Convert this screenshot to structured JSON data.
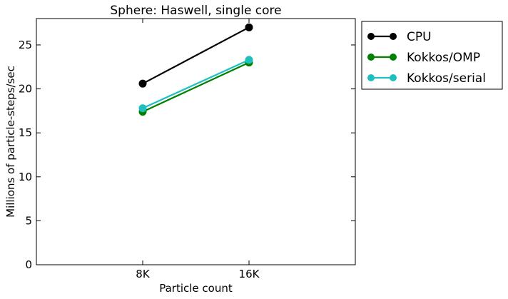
{
  "chart_data": {
    "type": "line",
    "title": "Sphere: Haswell, single core",
    "xlabel": "Particle count",
    "ylabel": "Millions of particle-steps/sec",
    "categories": [
      "8K",
      "16K"
    ],
    "x_positions": [
      1,
      2
    ],
    "xlim": [
      0,
      3
    ],
    "ylim": [
      0,
      28
    ],
    "yticks": [
      0,
      5,
      10,
      15,
      20,
      25
    ],
    "grid": false,
    "legend_position": "outside-right-top",
    "series": [
      {
        "name": "CPU",
        "color": "#000000",
        "values": [
          20.6,
          27.0
        ]
      },
      {
        "name": "Kokkos/OMP",
        "color": "#008000",
        "values": [
          17.4,
          23.0
        ]
      },
      {
        "name": "Kokkos/serial",
        "color": "#1fbfbf",
        "values": [
          17.8,
          23.3
        ]
      }
    ]
  }
}
